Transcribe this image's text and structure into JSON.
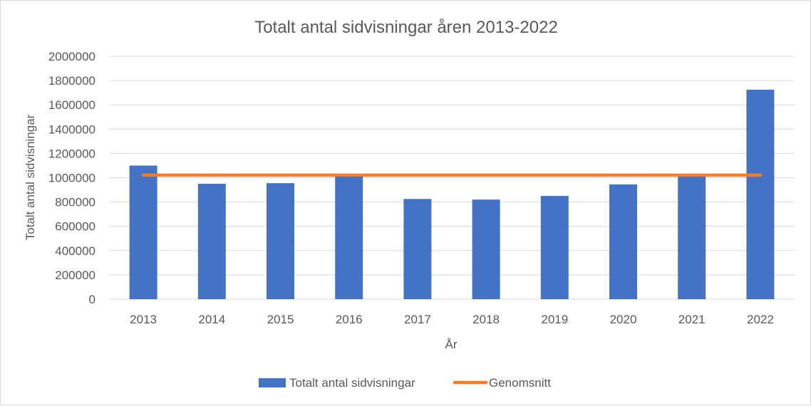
{
  "chart_data": {
    "type": "bar",
    "title": "Totalt antal sidvisningar åren 2013-2022",
    "xlabel": "År",
    "ylabel": "Totalt antal sidvisningar",
    "ylim": [
      0,
      2000000
    ],
    "yticks": [
      "0",
      "200000",
      "400000",
      "600000",
      "800000",
      "1000000",
      "1200000",
      "1400000",
      "1600000",
      "1800000",
      "2000000"
    ],
    "categories": [
      "2013",
      "2014",
      "2015",
      "2016",
      "2017",
      "2018",
      "2019",
      "2020",
      "2021",
      "2022"
    ],
    "series": [
      {
        "name": "Totalt antal sidvisningar",
        "type": "bar",
        "color": "#4472c4",
        "values": [
          1100000,
          950000,
          955000,
          1015000,
          825000,
          820000,
          850000,
          945000,
          1025000,
          1725000
        ]
      },
      {
        "name": "Genomsnitt",
        "type": "line",
        "color": "#ed7d31",
        "values": [
          1021000,
          1021000,
          1021000,
          1021000,
          1021000,
          1021000,
          1021000,
          1021000,
          1021000,
          1021000
        ]
      }
    ],
    "grid": true,
    "legend": "bottom"
  }
}
